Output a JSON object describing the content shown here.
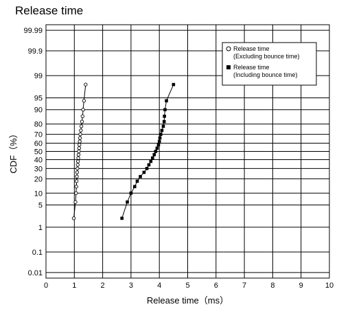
{
  "chart_data": {
    "type": "scatter",
    "title": "Release time",
    "xlabel": "Release time（ms）",
    "ylabel": "CDF（%）",
    "xlim": [
      0,
      10
    ],
    "x_ticks": [
      "0",
      "1",
      "2",
      "3",
      "4",
      "5",
      "6",
      "7",
      "8",
      "9",
      "10"
    ],
    "y_scale": "normal-probability",
    "y_ticks": [
      "0.01",
      "0.1",
      "1",
      "5",
      "10",
      "20",
      "30",
      "40",
      "50",
      "60",
      "70",
      "80",
      "90",
      "95",
      "99",
      "99.9",
      "99.99"
    ],
    "grid": true,
    "legend_position": "top-right",
    "series": [
      {
        "name": "Release time (Excluding bounce time)",
        "legend_line1": "Release time",
        "legend_line2": "(Excluding bounce time)",
        "marker": "open-circle",
        "x": [
          0.98,
          1.04,
          1.06,
          1.07,
          1.08,
          1.09,
          1.1,
          1.11,
          1.12,
          1.13,
          1.14,
          1.15,
          1.16,
          1.17,
          1.18,
          1.19,
          1.2,
          1.21,
          1.23,
          1.25,
          1.27,
          1.29,
          1.31,
          1.34,
          1.4
        ],
        "y": [
          2.0,
          6.0,
          10.0,
          14.0,
          18.0,
          22.0,
          26.0,
          30.0,
          34.0,
          38.0,
          42.0,
          46.0,
          50.0,
          54.0,
          58.0,
          62.0,
          66.0,
          70.0,
          74.0,
          78.0,
          82.0,
          86.0,
          90.0,
          94.0,
          98.0
        ]
      },
      {
        "name": "Release time (Including bounce time)",
        "legend_line1": "Release time",
        "legend_line2": "(Including bounce time)",
        "marker": "filled-square",
        "x": [
          2.68,
          2.87,
          3.0,
          3.13,
          3.22,
          3.33,
          3.46,
          3.56,
          3.63,
          3.7,
          3.76,
          3.82,
          3.87,
          3.92,
          3.97,
          4.0,
          4.02,
          4.05,
          4.09,
          4.14,
          4.17,
          4.18,
          4.2,
          4.25,
          4.5
        ],
        "y": [
          2.0,
          6.0,
          10.0,
          14.0,
          18.0,
          22.0,
          26.0,
          30.0,
          34.0,
          38.0,
          42.0,
          46.0,
          50.0,
          54.0,
          58.0,
          62.0,
          66.0,
          70.0,
          74.0,
          78.0,
          82.0,
          86.0,
          90.0,
          94.0,
          98.0
        ]
      }
    ]
  }
}
